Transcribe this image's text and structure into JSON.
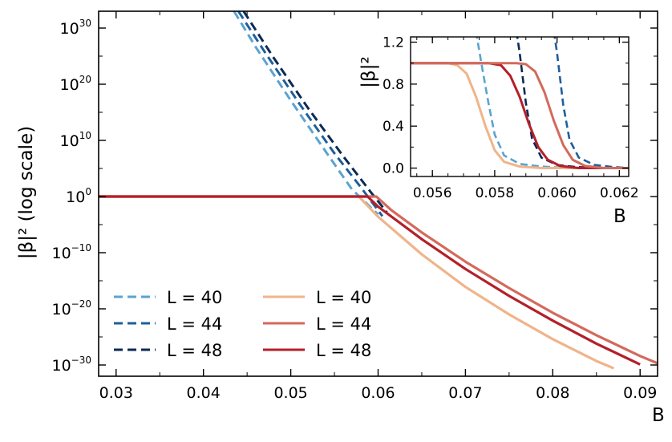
{
  "chart_data": [
    {
      "id": "main",
      "type": "line",
      "xlabel": "B",
      "ylabel": "|β|² (log scale)",
      "yscale": "log",
      "xlim": [
        0.028,
        0.092
      ],
      "ylim_exp": [
        -32,
        33
      ],
      "x_ticks": [
        "0.03",
        "0.04",
        "0.05",
        "0.06",
        "0.07",
        "0.08",
        "0.09"
      ],
      "y_ticks": [
        {
          "base": "10",
          "exp": "−30",
          "value": -30
        },
        {
          "base": "10",
          "exp": "−20",
          "value": -20
        },
        {
          "base": "10",
          "exp": "−10",
          "value": -10
        },
        {
          "base": "10",
          "exp": "0",
          "value": 0
        },
        {
          "base": "10",
          "exp": "10",
          "value": 10
        },
        {
          "base": "10",
          "exp": "20",
          "value": 20
        },
        {
          "base": "10",
          "exp": "30",
          "value": 30
        }
      ],
      "series": [
        {
          "name": "L = 40",
          "style": "dashed",
          "color": "#5ba3d0",
          "x": [
            0.0435,
            0.046,
            0.05,
            0.054,
            0.057,
            0.06
          ],
          "log10_y": [
            33,
            26.6,
            17.1,
            8.0,
            1.3,
            -3.2
          ]
        },
        {
          "name": "L = 44",
          "style": "dashed",
          "color": "#1f5f99",
          "x": [
            0.044,
            0.047,
            0.051,
            0.055,
            0.058,
            0.0605
          ],
          "log10_y": [
            33,
            25.8,
            16.5,
            7.7,
            1.7,
            -3.5
          ]
        },
        {
          "name": "L = 48",
          "style": "dashed",
          "color": "#0b2a55",
          "x": [
            0.0446,
            0.048,
            0.052,
            0.056,
            0.0592,
            0.061
          ],
          "log10_y": [
            33,
            24.8,
            15.7,
            7.2,
            0.7,
            -2.8
          ]
        },
        {
          "name": "L = 40",
          "style": "solid",
          "color": "#f0b48a",
          "x": [
            0.028,
            0.0578,
            0.06,
            0.065,
            0.07,
            0.075,
            0.08,
            0.085,
            0.087
          ],
          "log10_y": [
            0,
            0,
            -3.6,
            -10.3,
            -16.1,
            -21.0,
            -25.4,
            -29.3,
            -30.6
          ]
        },
        {
          "name": "L = 44",
          "style": "solid",
          "color": "#d36a5c",
          "x": [
            0.028,
            0.0598,
            0.0615,
            0.065,
            0.07,
            0.075,
            0.08,
            0.085,
            0.09,
            0.092
          ],
          "log10_y": [
            0,
            0,
            -2.4,
            -6.4,
            -11.6,
            -16.3,
            -20.7,
            -24.7,
            -28.4,
            -29.7
          ]
        },
        {
          "name": "L = 48",
          "style": "solid",
          "color": "#b3202a",
          "x": [
            0.028,
            0.0588,
            0.06,
            0.065,
            0.07,
            0.075,
            0.08,
            0.085,
            0.09
          ],
          "log10_y": [
            0,
            0,
            -1.8,
            -7.6,
            -12.9,
            -17.7,
            -22.1,
            -26.2,
            -29.9
          ]
        }
      ],
      "legend": {
        "placement": "bottom-left",
        "columns": 2,
        "entries": [
          {
            "label": "L = 40",
            "style": "dashed",
            "color": "#5ba3d0"
          },
          {
            "label": "L = 44",
            "style": "dashed",
            "color": "#1f5f99"
          },
          {
            "label": "L = 48",
            "style": "dashed",
            "color": "#0b2a55"
          },
          {
            "label": "L = 40",
            "style": "solid",
            "color": "#f0b48a"
          },
          {
            "label": "L = 44",
            "style": "solid",
            "color": "#d36a5c"
          },
          {
            "label": "L = 48",
            "style": "solid",
            "color": "#b3202a"
          }
        ]
      }
    },
    {
      "id": "inset",
      "type": "line",
      "placement": "top-right inset",
      "xlabel": "B",
      "ylabel": "|β|²",
      "xlim": [
        0.0553,
        0.0623
      ],
      "ylim": [
        -0.08,
        1.25
      ],
      "x_ticks": [
        "0.056",
        "0.058",
        "0.060",
        "0.062"
      ],
      "y_ticks": [
        "0.0",
        "0.4",
        "0.8",
        "1.2"
      ],
      "series": [
        {
          "name": "L = 40",
          "style": "dashed",
          "color": "#5ba3d0",
          "x": [
            0.0574,
            0.0576,
            0.0578,
            0.058,
            0.0583,
            0.0588,
            0.0595,
            0.0605
          ],
          "y": [
            1.3,
            0.95,
            0.62,
            0.32,
            0.12,
            0.04,
            0.015,
            0.0
          ]
        },
        {
          "name": "L = 48",
          "style": "dashed",
          "color": "#0b2a55",
          "x": [
            0.0587,
            0.0588,
            0.059,
            0.0592,
            0.0595,
            0.06,
            0.0606,
            0.0615
          ],
          "y": [
            1.3,
            1.1,
            0.62,
            0.28,
            0.1,
            0.03,
            0.01,
            0.0
          ]
        },
        {
          "name": "L = 44",
          "style": "dashed",
          "color": "#1f5f99",
          "x": [
            0.0599,
            0.06,
            0.0602,
            0.0604,
            0.0607,
            0.0612,
            0.0618,
            0.0623
          ],
          "y": [
            1.3,
            1.1,
            0.6,
            0.27,
            0.1,
            0.03,
            0.01,
            0.0
          ]
        },
        {
          "name": "L = 40",
          "style": "solid",
          "color": "#f0b48a",
          "x": [
            0.0553,
            0.0565,
            0.0568,
            0.0571,
            0.0574,
            0.0577,
            0.058,
            0.0583,
            0.0588,
            0.0595,
            0.0623
          ],
          "y": [
            1.0,
            1.0,
            0.98,
            0.9,
            0.68,
            0.4,
            0.17,
            0.06,
            0.015,
            0.0,
            0.0
          ]
        },
        {
          "name": "L = 48",
          "style": "solid",
          "color": "#b3202a",
          "x": [
            0.0553,
            0.0578,
            0.0582,
            0.0585,
            0.0588,
            0.0591,
            0.0594,
            0.0597,
            0.0601,
            0.0607,
            0.0623
          ],
          "y": [
            1.0,
            1.0,
            0.98,
            0.88,
            0.68,
            0.42,
            0.2,
            0.08,
            0.02,
            0.0,
            0.0
          ]
        },
        {
          "name": "L = 44",
          "style": "solid",
          "color": "#d36a5c",
          "x": [
            0.0553,
            0.0587,
            0.059,
            0.0593,
            0.0596,
            0.0599,
            0.0602,
            0.0605,
            0.0609,
            0.0615,
            0.0623
          ],
          "y": [
            1.0,
            1.0,
            0.99,
            0.92,
            0.72,
            0.45,
            0.22,
            0.08,
            0.02,
            0.0,
            0.0
          ]
        }
      ]
    }
  ]
}
